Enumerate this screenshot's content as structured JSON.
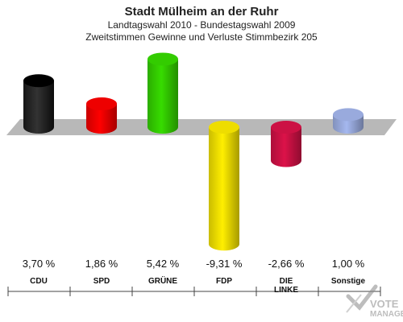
{
  "chart_data": {
    "type": "bar",
    "title": "Stadt Mülheim an der Ruhr",
    "subtitle_1": "Landtagswahl 2010 - Bundestagswahl 2009",
    "subtitle_2": "Zweitstimmen Gewinne und Verluste Stimmbezirk 205",
    "categories": [
      "CDU",
      "SPD",
      "GRÜNE",
      "FDP",
      "DIE LINKE",
      "Sonstige"
    ],
    "category_lines": [
      [
        "CDU"
      ],
      [
        "SPD"
      ],
      [
        "GRÜNE"
      ],
      [
        "FDP"
      ],
      [
        "DIE",
        "LINKE"
      ],
      [
        "Sonstige"
      ]
    ],
    "values": [
      3.7,
      1.86,
      5.42,
      -9.31,
      -2.66,
      1.0
    ],
    "value_labels": [
      "3,70 %",
      "1,86 %",
      "5,42 %",
      "-9,31 %",
      "-2,66 %",
      "1,00 %"
    ],
    "colors": [
      "#000000",
      "#ee0000",
      "#33cc00",
      "#eedd00",
      "#cc1144",
      "#99aadd"
    ],
    "baseline": 0,
    "grid": false,
    "legend": "none"
  },
  "watermark": {
    "line1": "VOTE",
    "line2": "MANAGER",
    "icon": "ballot-check-icon"
  }
}
